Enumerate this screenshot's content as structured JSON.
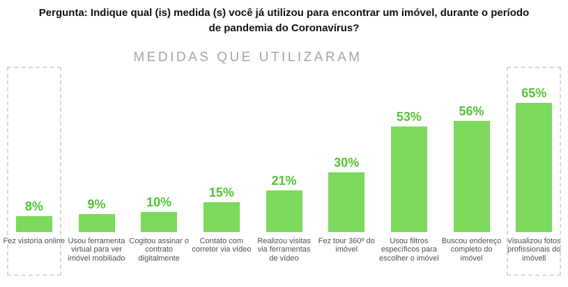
{
  "header": {
    "question": "Pergunta: Indique qual (is) medida (s) você já utilizou para encontrar um imóvel, durante o período de pandemia do Coronavírus?"
  },
  "chart_data": {
    "type": "bar",
    "title": "MEDIDAS QUE UTILIZARAM",
    "categories": [
      "Fez vistoria online",
      "Usou ferramenta virtual para ver imóvel mobiliado",
      "Cogitou assinar o contrato digitalmente",
      "Contato com corretor via vídeo",
      "Realizou visitas via ferramentas de vídeo",
      "Fez tour 360º do imóvel",
      "Usou filtros específicos para escolher o imóvel",
      "Buscou endereço completo do imóvel",
      "Visualizou fotos profissionais do imóvell"
    ],
    "values": [
      8,
      9,
      10,
      15,
      21,
      30,
      53,
      56,
      65
    ],
    "unit": "%",
    "value_labels": [
      "8%",
      "9%",
      "10%",
      "15%",
      "21%",
      "30%",
      "53%",
      "56%",
      "65%"
    ],
    "highlighted_indices": [
      0,
      8
    ],
    "bar_color": "#7cd95c",
    "value_label_color": "#52c234",
    "highlight_box_style": "dashed",
    "ylim": [
      0,
      70
    ],
    "grid": false,
    "legend": false
  }
}
